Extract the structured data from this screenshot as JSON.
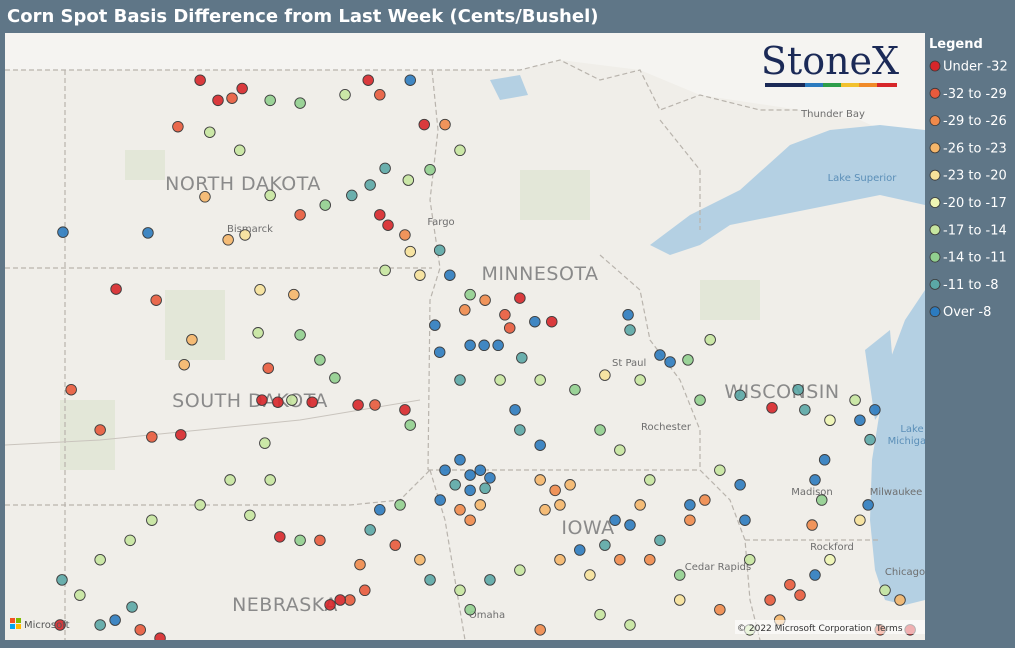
{
  "title": "Corn Spot Basis Difference from Last Week (Cents/Bushel)",
  "logo": "StoneX",
  "legend": {
    "title": "Legend",
    "items": [
      {
        "label": "Under -32",
        "color": "#d7262a"
      },
      {
        "label": "-32 to -29",
        "color": "#e85a3c"
      },
      {
        "label": "-29 to -26",
        "color": "#f08a4b"
      },
      {
        "label": "-26 to -23",
        "color": "#f5b66a"
      },
      {
        "label": "-23 to -20",
        "color": "#f6e19a"
      },
      {
        "label": "-20 to -17",
        "color": "#eef5b4"
      },
      {
        "label": "-17 to -14",
        "color": "#c7e6a0"
      },
      {
        "label": "-14 to -11",
        "color": "#91cf8f"
      },
      {
        "label": "-11 to -8",
        "color": "#5ba7a6"
      },
      {
        "label": "Over -8",
        "color": "#2c7bbf"
      }
    ]
  },
  "map": {
    "states": [
      "NORTH DAKOTA",
      "MINNESOTA",
      "SOUTH DAKOTA",
      "WISCONSIN",
      "IOWA",
      "NEBRASKA"
    ],
    "cities": [
      "Bismarck",
      "Fargo",
      "St Paul",
      "Rochester",
      "Madison",
      "Milwaukee",
      "Rockford",
      "Chicago",
      "Cedar Rapids",
      "Thunder Bay",
      "Omaha"
    ],
    "water": [
      "Lake Superior",
      "Lake",
      "Michigan"
    ],
    "provider": "Microsoft",
    "attribution": "© 2022 Microsoft Corporation",
    "terms": "Terms"
  },
  "points": [
    [
      -101.81,
      48.97,
      0
    ],
    [
      -101.44,
      48.68,
      0
    ],
    [
      -101.15,
      48.71,
      1
    ],
    [
      -100.94,
      48.85,
      0
    ],
    [
      -102.27,
      48.3,
      1
    ],
    [
      -101.61,
      48.22,
      6
    ],
    [
      -100.99,
      47.96,
      6
    ],
    [
      -100.36,
      48.68,
      7
    ],
    [
      -99.74,
      48.64,
      7
    ],
    [
      -98.81,
      48.76,
      6
    ],
    [
      -98.33,
      48.97,
      0
    ],
    [
      -98.09,
      48.76,
      1
    ],
    [
      -97.46,
      48.97,
      9
    ],
    [
      -97.17,
      48.33,
      0
    ],
    [
      -96.74,
      48.33,
      2
    ],
    [
      -96.43,
      47.96,
      6
    ],
    [
      -97.05,
      47.68,
      7
    ],
    [
      -97.5,
      47.53,
      6
    ],
    [
      -97.98,
      47.7,
      8
    ],
    [
      -98.29,
      47.46,
      8
    ],
    [
      -98.67,
      47.31,
      8
    ],
    [
      -99.22,
      47.17,
      7
    ],
    [
      -99.74,
      47.03,
      1
    ],
    [
      -100.36,
      47.31,
      6
    ],
    [
      -101.71,
      47.29,
      3
    ],
    [
      -101.23,
      46.67,
      3
    ],
    [
      -100.88,
      46.74,
      4
    ],
    [
      -104.65,
      46.78,
      9
    ],
    [
      -102.89,
      46.77,
      9
    ],
    [
      -103.55,
      45.96,
      0
    ],
    [
      -102.72,
      45.8,
      1
    ],
    [
      -102.14,
      44.87,
      3
    ],
    [
      -101.98,
      45.23,
      3
    ],
    [
      -104.48,
      44.51,
      1
    ],
    [
      -103.88,
      43.93,
      1
    ],
    [
      -102.81,
      43.83,
      1
    ],
    [
      -102.21,
      43.86,
      0
    ],
    [
      -100.47,
      43.74,
      6
    ],
    [
      -100.53,
      44.36,
      0
    ],
    [
      -100.2,
      44.33,
      0
    ],
    [
      -99.49,
      44.33,
      0
    ],
    [
      -99.91,
      44.36,
      6
    ],
    [
      -100.4,
      44.82,
      1
    ],
    [
      -100.57,
      45.95,
      4
    ],
    [
      -99.87,
      45.88,
      3
    ],
    [
      -100.61,
      45.33,
      6
    ],
    [
      -99.74,
      45.3,
      7
    ],
    [
      -99.33,
      44.94,
      7
    ],
    [
      -99.02,
      44.68,
      7
    ],
    [
      -98.54,
      44.29,
      0
    ],
    [
      -98.19,
      44.29,
      1
    ],
    [
      -97.57,
      44.22,
      0
    ],
    [
      -97.46,
      44.0,
      7
    ],
    [
      -98.09,
      47.03,
      0
    ],
    [
      -97.92,
      46.88,
      0
    ],
    [
      -97.57,
      46.74,
      2
    ],
    [
      -97.46,
      46.5,
      4
    ],
    [
      -97.98,
      46.23,
      6
    ],
    [
      -97.26,
      46.16,
      4
    ],
    [
      -96.85,
      46.52,
      8
    ],
    [
      -96.64,
      46.16,
      9
    ],
    [
      -96.22,
      45.88,
      7
    ],
    [
      -95.91,
      45.8,
      2
    ],
    [
      -95.5,
      45.59,
      1
    ],
    [
      -95.19,
      45.83,
      0
    ],
    [
      -94.88,
      45.49,
      9
    ],
    [
      -94.53,
      45.49,
      0
    ],
    [
      -95.4,
      45.4,
      1
    ],
    [
      -96.33,
      45.66,
      2
    ],
    [
      -96.95,
      45.44,
      9
    ],
    [
      -96.85,
      45.05,
      9
    ],
    [
      -96.22,
      45.15,
      9
    ],
    [
      -95.93,
      45.15,
      9
    ],
    [
      -95.64,
      45.15,
      9
    ],
    [
      -95.15,
      44.97,
      8
    ],
    [
      -96.43,
      44.65,
      8
    ],
    [
      -95.6,
      44.65,
      6
    ],
    [
      -94.77,
      44.65,
      6
    ],
    [
      -94.05,
      44.51,
      7
    ],
    [
      -93.43,
      44.72,
      4
    ],
    [
      -92.95,
      45.59,
      9
    ],
    [
      -92.91,
      45.37,
      8
    ],
    [
      -92.29,
      45.01,
      9
    ],
    [
      -92.08,
      44.91,
      9
    ],
    [
      -91.71,
      44.94,
      7
    ],
    [
      -91.25,
      45.23,
      6
    ],
    [
      -92.7,
      44.65,
      6
    ],
    [
      -91.46,
      44.36,
      7
    ],
    [
      -90.63,
      44.43,
      8
    ],
    [
      -89.97,
      44.25,
      0
    ],
    [
      -89.43,
      44.51,
      8
    ],
    [
      -89.29,
      44.22,
      8
    ],
    [
      -88.77,
      44.07,
      5
    ],
    [
      -88.25,
      44.36,
      6
    ],
    [
      -88.15,
      44.07,
      9
    ],
    [
      -87.84,
      44.22,
      9
    ],
    [
      -87.94,
      43.79,
      8
    ],
    [
      -96.74,
      43.35,
      9
    ],
    [
      -96.43,
      43.5,
      9
    ],
    [
      -96.22,
      43.28,
      9
    ],
    [
      -96.01,
      43.35,
      9
    ],
    [
      -95.81,
      43.24,
      9
    ],
    [
      -96.53,
      43.14,
      8
    ],
    [
      -96.84,
      42.92,
      9
    ],
    [
      -96.22,
      43.06,
      9
    ],
    [
      -95.91,
      43.09,
      8
    ],
    [
      -96.43,
      42.78,
      2
    ],
    [
      -96.22,
      42.63,
      2
    ],
    [
      -96.01,
      42.85,
      3
    ],
    [
      -94.77,
      43.21,
      3
    ],
    [
      -94.46,
      43.06,
      2
    ],
    [
      -94.15,
      43.14,
      3
    ],
    [
      -94.67,
      42.78,
      3
    ],
    [
      -94.36,
      42.85,
      3
    ],
    [
      -95.19,
      43.93,
      8
    ],
    [
      -95.29,
      44.22,
      9
    ],
    [
      -94.77,
      43.71,
      9
    ],
    [
      -93.53,
      43.93,
      7
    ],
    [
      -93.12,
      43.64,
      6
    ],
    [
      -92.5,
      43.21,
      6
    ],
    [
      -92.7,
      42.85,
      3
    ],
    [
      -93.22,
      42.63,
      9
    ],
    [
      -92.91,
      42.56,
      9
    ],
    [
      -92.29,
      42.34,
      8
    ],
    [
      -91.67,
      42.85,
      9
    ],
    [
      -91.67,
      42.63,
      2
    ],
    [
      -91.36,
      42.92,
      2
    ],
    [
      -90.63,
      43.14,
      9
    ],
    [
      -90.53,
      42.63,
      9
    ],
    [
      -91.05,
      43.35,
      6
    ],
    [
      -93.95,
      42.2,
      9
    ],
    [
      -93.43,
      42.27,
      8
    ],
    [
      -94.36,
      42.06,
      3
    ],
    [
      -93.74,
      41.84,
      4
    ],
    [
      -93.12,
      42.06,
      2
    ],
    [
      -92.5,
      42.06,
      2
    ],
    [
      -91.88,
      41.84,
      7
    ],
    [
      -90.43,
      42.06,
      6
    ],
    [
      -89.6,
      41.7,
      1
    ],
    [
      -89.39,
      41.55,
      1
    ],
    [
      -89.08,
      41.84,
      9
    ],
    [
      -88.77,
      42.06,
      5
    ],
    [
      -89.14,
      42.56,
      2
    ],
    [
      -88.94,
      42.92,
      7
    ],
    [
      -88.88,
      43.5,
      9
    ],
    [
      -89.08,
      43.21,
      9
    ],
    [
      -88.15,
      42.63,
      4
    ],
    [
      -87.98,
      42.85,
      9
    ],
    [
      -87.63,
      41.62,
      6
    ],
    [
      -87.32,
      41.48,
      3
    ],
    [
      -87.11,
      41.05,
      0
    ],
    [
      -87.73,
      41.05,
      1
    ],
    [
      -98.09,
      42.78,
      9
    ],
    [
      -97.67,
      42.85,
      7
    ],
    [
      -98.29,
      42.49,
      8
    ],
    [
      -97.77,
      42.27,
      1
    ],
    [
      -97.26,
      42.06,
      3
    ],
    [
      -98.5,
      41.99,
      2
    ],
    [
      -98.71,
      41.48,
      1
    ],
    [
      -98.4,
      41.62,
      1
    ],
    [
      -98.91,
      41.48,
      0
    ],
    [
      -99.12,
      41.41,
      0
    ],
    [
      -99.33,
      42.34,
      1
    ],
    [
      -100.16,
      42.39,
      0
    ],
    [
      -99.74,
      42.34,
      7
    ],
    [
      -100.78,
      42.7,
      6
    ],
    [
      -101.19,
      43.21,
      6
    ],
    [
      -100.36,
      43.21,
      6
    ],
    [
      -101.81,
      42.85,
      6
    ],
    [
      -102.81,
      42.63,
      6
    ],
    [
      -103.26,
      42.34,
      6
    ],
    [
      -103.88,
      42.06,
      6
    ],
    [
      -104.67,
      41.77,
      8
    ],
    [
      -104.3,
      41.55,
      6
    ],
    [
      -103.57,
      41.19,
      9
    ],
    [
      -103.88,
      41.12,
      8
    ],
    [
      -103.22,
      41.38,
      8
    ],
    [
      -103.05,
      41.05,
      1
    ],
    [
      -102.64,
      40.93,
      0
    ],
    [
      -104.71,
      41.12,
      0
    ],
    [
      -97.05,
      41.77,
      8
    ],
    [
      -96.43,
      41.62,
      6
    ],
    [
      -95.81,
      41.77,
      8
    ],
    [
      -95.19,
      41.91,
      6
    ],
    [
      -96.22,
      41.34,
      7
    ],
    [
      -94.77,
      41.05,
      2
    ],
    [
      -93.53,
      41.27,
      6
    ],
    [
      -92.91,
      41.12,
      6
    ],
    [
      -91.88,
      41.48,
      4
    ],
    [
      -91.05,
      41.34,
      2
    ],
    [
      -90.43,
      41.05,
      6
    ],
    [
      -90.01,
      41.48,
      1
    ],
    [
      -89.81,
      41.19,
      3
    ]
  ]
}
